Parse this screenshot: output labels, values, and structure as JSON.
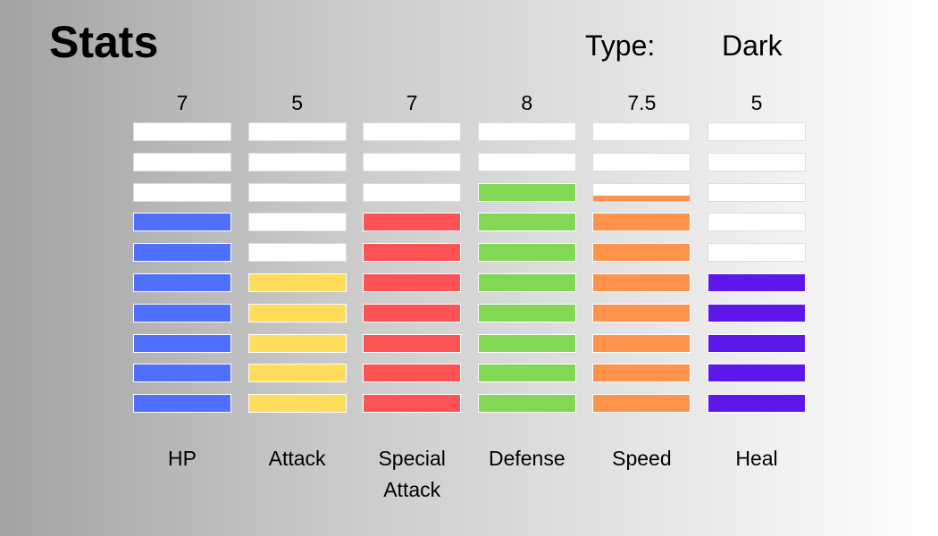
{
  "header": {
    "title": "Stats",
    "type_label": "Type:",
    "type_value": "Dark"
  },
  "chart_data": {
    "type": "bar",
    "title": "Stats",
    "max_segments": 10,
    "categories": [
      "HP",
      "Attack",
      "Special Attack",
      "Defense",
      "Speed",
      "Heal"
    ],
    "values": [
      7,
      5,
      7,
      8,
      7.5,
      5
    ],
    "value_labels": [
      "7",
      "5",
      "7",
      "8",
      "7.5",
      "5"
    ],
    "colors": [
      "#4f6ffc",
      "#ffdc5a",
      "#fe5255",
      "#82d854",
      "#ff934c",
      "#5e17eb"
    ],
    "empty_color": "#ffffff"
  }
}
